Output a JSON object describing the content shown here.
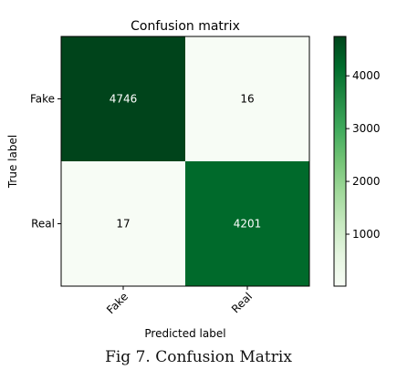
{
  "caption": "Fig 7. Confusion Matrix",
  "chart_data": {
    "type": "heatmap",
    "title": "Confusion matrix",
    "xlabel": "Predicted label",
    "ylabel": "True label",
    "x_categories": [
      "Fake",
      "Real"
    ],
    "y_categories": [
      "Fake",
      "Real"
    ],
    "values": [
      [
        4746,
        16
      ],
      [
        17,
        4201
      ]
    ],
    "colorscale": "Greens",
    "colorbar": {
      "range": [
        16,
        4746
      ],
      "ticks": [
        1000,
        2000,
        3000,
        4000
      ],
      "tick_labels": [
        "1000",
        "2000",
        "3000",
        "4000"
      ]
    },
    "colors": {
      "min": "#f7fcf5",
      "max": "#00441b",
      "text_on_dark": "#ffffff",
      "text_on_light": "#000000"
    }
  }
}
